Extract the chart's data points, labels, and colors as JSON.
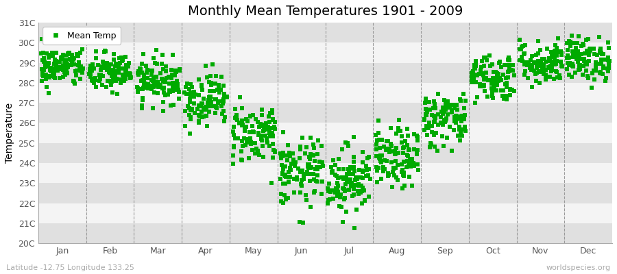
{
  "title": "Monthly Mean Temperatures 1901 - 2009",
  "ylabel": "Temperature",
  "xlabel": "",
  "footer_left": "Latitude -12.75 Longitude 133.25",
  "footer_right": "worldspecies.org",
  "legend_label": "Mean Temp",
  "months": [
    "Jan",
    "Feb",
    "Mar",
    "Apr",
    "May",
    "Jun",
    "Jul",
    "Aug",
    "Sep",
    "Oct",
    "Nov",
    "Dec"
  ],
  "ylim": [
    20,
    31
  ],
  "yticks": [
    20,
    21,
    22,
    23,
    24,
    25,
    26,
    27,
    28,
    29,
    30,
    31
  ],
  "ytick_labels": [
    "20C",
    "21C",
    "22C",
    "23C",
    "24C",
    "25C",
    "26C",
    "27C",
    "28C",
    "29C",
    "30C",
    "31C"
  ],
  "marker_color": "#00aa00",
  "marker_size": 4,
  "background_color": "#ffffff",
  "plot_bg_color": "#e8e8e8",
  "band_color_light": "#f4f4f4",
  "band_color_dark": "#e0e0e0",
  "title_fontsize": 14,
  "axis_label_fontsize": 10,
  "tick_fontsize": 9,
  "footer_fontsize": 8,
  "legend_fontsize": 9,
  "years": 109,
  "mean_temps": [
    28.8,
    28.5,
    28.1,
    27.2,
    25.5,
    23.5,
    23.2,
    24.2,
    26.2,
    28.3,
    29.0,
    29.2
  ],
  "std_temps": [
    0.5,
    0.5,
    0.55,
    0.65,
    0.75,
    0.85,
    0.85,
    0.75,
    0.7,
    0.6,
    0.55,
    0.55
  ],
  "min_temps": [
    27.0,
    26.8,
    26.5,
    25.2,
    23.0,
    20.8,
    20.5,
    22.0,
    24.2,
    26.8,
    27.8,
    27.5
  ],
  "max_temps": [
    30.8,
    30.5,
    29.8,
    29.5,
    28.0,
    26.5,
    25.5,
    27.0,
    28.5,
    30.5,
    31.2,
    30.8
  ]
}
